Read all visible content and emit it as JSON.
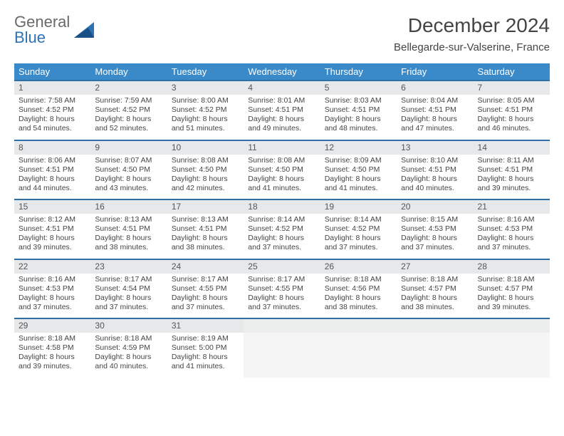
{
  "logo": {
    "text1": "General",
    "text2": "Blue"
  },
  "title": "December 2024",
  "location": "Bellegarde-sur-Valserine, France",
  "colors": {
    "header_bg": "#3a8ac9",
    "row_border": "#2d6fa6",
    "daynum_bg": "#e7e8ea",
    "logo_gray": "#6a6a6a",
    "logo_blue": "#2d72b5"
  },
  "weekdays": [
    "Sunday",
    "Monday",
    "Tuesday",
    "Wednesday",
    "Thursday",
    "Friday",
    "Saturday"
  ],
  "weeks": [
    [
      {
        "n": "1",
        "sr": "7:58 AM",
        "ss": "4:52 PM",
        "dl": "8 hours and 54 minutes."
      },
      {
        "n": "2",
        "sr": "7:59 AM",
        "ss": "4:52 PM",
        "dl": "8 hours and 52 minutes."
      },
      {
        "n": "3",
        "sr": "8:00 AM",
        "ss": "4:52 PM",
        "dl": "8 hours and 51 minutes."
      },
      {
        "n": "4",
        "sr": "8:01 AM",
        "ss": "4:51 PM",
        "dl": "8 hours and 49 minutes."
      },
      {
        "n": "5",
        "sr": "8:03 AM",
        "ss": "4:51 PM",
        "dl": "8 hours and 48 minutes."
      },
      {
        "n": "6",
        "sr": "8:04 AM",
        "ss": "4:51 PM",
        "dl": "8 hours and 47 minutes."
      },
      {
        "n": "7",
        "sr": "8:05 AM",
        "ss": "4:51 PM",
        "dl": "8 hours and 46 minutes."
      }
    ],
    [
      {
        "n": "8",
        "sr": "8:06 AM",
        "ss": "4:51 PM",
        "dl": "8 hours and 44 minutes."
      },
      {
        "n": "9",
        "sr": "8:07 AM",
        "ss": "4:50 PM",
        "dl": "8 hours and 43 minutes."
      },
      {
        "n": "10",
        "sr": "8:08 AM",
        "ss": "4:50 PM",
        "dl": "8 hours and 42 minutes."
      },
      {
        "n": "11",
        "sr": "8:08 AM",
        "ss": "4:50 PM",
        "dl": "8 hours and 41 minutes."
      },
      {
        "n": "12",
        "sr": "8:09 AM",
        "ss": "4:50 PM",
        "dl": "8 hours and 41 minutes."
      },
      {
        "n": "13",
        "sr": "8:10 AM",
        "ss": "4:51 PM",
        "dl": "8 hours and 40 minutes."
      },
      {
        "n": "14",
        "sr": "8:11 AM",
        "ss": "4:51 PM",
        "dl": "8 hours and 39 minutes."
      }
    ],
    [
      {
        "n": "15",
        "sr": "8:12 AM",
        "ss": "4:51 PM",
        "dl": "8 hours and 39 minutes."
      },
      {
        "n": "16",
        "sr": "8:13 AM",
        "ss": "4:51 PM",
        "dl": "8 hours and 38 minutes."
      },
      {
        "n": "17",
        "sr": "8:13 AM",
        "ss": "4:51 PM",
        "dl": "8 hours and 38 minutes."
      },
      {
        "n": "18",
        "sr": "8:14 AM",
        "ss": "4:52 PM",
        "dl": "8 hours and 37 minutes."
      },
      {
        "n": "19",
        "sr": "8:14 AM",
        "ss": "4:52 PM",
        "dl": "8 hours and 37 minutes."
      },
      {
        "n": "20",
        "sr": "8:15 AM",
        "ss": "4:53 PM",
        "dl": "8 hours and 37 minutes."
      },
      {
        "n": "21",
        "sr": "8:16 AM",
        "ss": "4:53 PM",
        "dl": "8 hours and 37 minutes."
      }
    ],
    [
      {
        "n": "22",
        "sr": "8:16 AM",
        "ss": "4:53 PM",
        "dl": "8 hours and 37 minutes."
      },
      {
        "n": "23",
        "sr": "8:17 AM",
        "ss": "4:54 PM",
        "dl": "8 hours and 37 minutes."
      },
      {
        "n": "24",
        "sr": "8:17 AM",
        "ss": "4:55 PM",
        "dl": "8 hours and 37 minutes."
      },
      {
        "n": "25",
        "sr": "8:17 AM",
        "ss": "4:55 PM",
        "dl": "8 hours and 37 minutes."
      },
      {
        "n": "26",
        "sr": "8:18 AM",
        "ss": "4:56 PM",
        "dl": "8 hours and 38 minutes."
      },
      {
        "n": "27",
        "sr": "8:18 AM",
        "ss": "4:57 PM",
        "dl": "8 hours and 38 minutes."
      },
      {
        "n": "28",
        "sr": "8:18 AM",
        "ss": "4:57 PM",
        "dl": "8 hours and 39 minutes."
      }
    ],
    [
      {
        "n": "29",
        "sr": "8:18 AM",
        "ss": "4:58 PM",
        "dl": "8 hours and 39 minutes."
      },
      {
        "n": "30",
        "sr": "8:18 AM",
        "ss": "4:59 PM",
        "dl": "8 hours and 40 minutes."
      },
      {
        "n": "31",
        "sr": "8:19 AM",
        "ss": "5:00 PM",
        "dl": "8 hours and 41 minutes."
      },
      null,
      null,
      null,
      null
    ]
  ],
  "labels": {
    "sunrise": "Sunrise: ",
    "sunset": "Sunset: ",
    "daylight": "Daylight: "
  }
}
